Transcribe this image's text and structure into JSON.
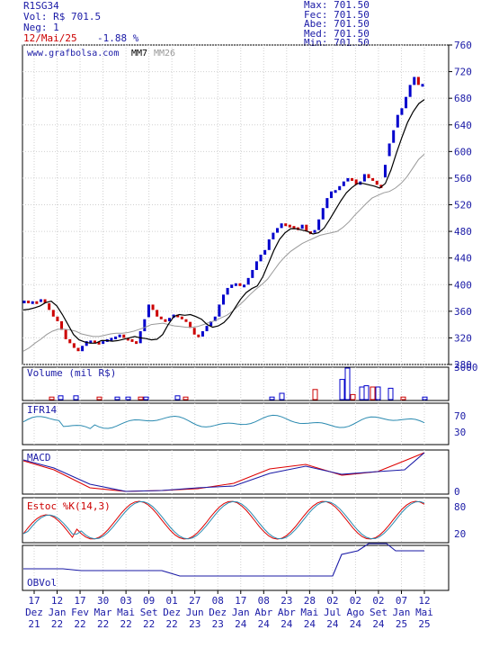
{
  "header": {
    "ticker": "R1SG34",
    "vol": "Vol: R$ 701.5",
    "neg": "Neg: 1",
    "date": "12/Mai/25",
    "change": "-1.88 %"
  },
  "stats": [
    {
      "label": "Max:",
      "value": "701.50"
    },
    {
      "label": "Fec:",
      "value": "701.50"
    },
    {
      "label": "Abe:",
      "value": "701.50"
    },
    {
      "label": "Med:",
      "value": "701.50"
    },
    {
      "label": "Min:",
      "value": "701.50"
    }
  ],
  "colors": {
    "frame": "#000000",
    "text_blue": "#1a1aa6",
    "text_red": "#cc0000",
    "mm7": "#000000",
    "mm26": "#999999",
    "up": "#0000cc",
    "down": "#cc0000",
    "ifr": "#2a8ab0",
    "macd": "#1a1aa6",
    "signal": "#dd0000",
    "stoch_k": "#dd0000",
    "stoch_d": "#2a8ab0",
    "obv": "#1a1aa6",
    "grid": "#d0d0d0"
  },
  "chart_data": {
    "type": "candlestick",
    "watermark": "www.grafbolsa.com",
    "legend": [
      "MM7",
      "MM26"
    ],
    "price_axis": {
      "ylim": [
        280,
        760
      ],
      "ticks": [
        280,
        320,
        360,
        400,
        440,
        480,
        520,
        560,
        600,
        640,
        680,
        720,
        760
      ]
    },
    "x_ticks": [
      {
        "day": "17",
        "month": "Dez",
        "year": "21"
      },
      {
        "day": "12",
        "month": "Jan",
        "year": "22"
      },
      {
        "day": "17",
        "month": "Fev",
        "year": "22"
      },
      {
        "day": "30",
        "month": "Mar",
        "year": "22"
      },
      {
        "day": "03",
        "month": "Mai",
        "year": "22"
      },
      {
        "day": "09",
        "month": "Set",
        "year": "22"
      },
      {
        "day": "01",
        "month": "Dez",
        "year": "22"
      },
      {
        "day": "27",
        "month": "Jun",
        "year": "23"
      },
      {
        "day": "08",
        "month": "Dez",
        "year": "23"
      },
      {
        "day": "17",
        "month": "Jan",
        "year": "24"
      },
      {
        "day": "08",
        "month": "Abr",
        "year": "24"
      },
      {
        "day": "23",
        "month": "Abr",
        "year": "24"
      },
      {
        "day": "28",
        "month": "Mai",
        "year": "24"
      },
      {
        "day": "02",
        "month": "Jul",
        "year": "24"
      },
      {
        "day": "02",
        "month": "Ago",
        "year": "24"
      },
      {
        "day": "02",
        "month": "Set",
        "year": "24"
      },
      {
        "day": "07",
        "month": "Jan",
        "year": "25"
      },
      {
        "day": "12",
        "month": "Mai",
        "year": "25"
      }
    ],
    "close": [
      376,
      372,
      375,
      374,
      378,
      372,
      362,
      352,
      345,
      332,
      318,
      312,
      305,
      300,
      308,
      315,
      316,
      314,
      312,
      315,
      318,
      320,
      322,
      325,
      320,
      318,
      315,
      312,
      330,
      348,
      370,
      362,
      352,
      348,
      345,
      350,
      355,
      352,
      348,
      344,
      335,
      325,
      322,
      330,
      338,
      345,
      352,
      370,
      385,
      395,
      400,
      402,
      398,
      400,
      410,
      422,
      435,
      445,
      452,
      468,
      478,
      485,
      492,
      490,
      488,
      486,
      484,
      490,
      480,
      478,
      482,
      498,
      515,
      530,
      540,
      542,
      548,
      555,
      560,
      558,
      550,
      555,
      566,
      560,
      556,
      550,
      545,
      580,
      612,
      632,
      655,
      665,
      682,
      700,
      712,
      700,
      701.5
    ],
    "mm7": [
      362,
      363,
      365,
      368,
      373,
      375,
      368,
      355,
      340,
      325,
      317,
      314,
      312,
      312,
      316,
      316,
      315,
      316,
      318,
      320,
      322,
      320,
      319,
      317,
      318,
      325,
      340,
      352,
      355,
      354,
      355,
      352,
      348,
      340,
      336,
      338,
      343,
      352,
      365,
      378,
      388,
      394,
      398,
      412,
      432,
      452,
      468,
      478,
      484,
      484,
      482,
      480,
      476,
      478,
      485,
      498,
      512,
      526,
      538,
      546,
      552,
      552,
      550,
      548,
      545,
      552,
      572,
      598,
      622,
      644,
      660,
      672,
      678
    ],
    "mm26": [
      300,
      305,
      312,
      318,
      325,
      330,
      333,
      333,
      332,
      330,
      326,
      324,
      322,
      322,
      324,
      326,
      327,
      327,
      328,
      330,
      333,
      336,
      340,
      341,
      342,
      340,
      338,
      337,
      336,
      336,
      337,
      340,
      343,
      346,
      350,
      354,
      360,
      368,
      376,
      385,
      393,
      400,
      408,
      420,
      432,
      442,
      450,
      456,
      462,
      466,
      470,
      474,
      476,
      478,
      480,
      486,
      494,
      504,
      513,
      522,
      530,
      534,
      538,
      540,
      545,
      552,
      562,
      575,
      588,
      596
    ],
    "volume": {
      "label": "Volume (mil R$)",
      "ylim": [
        0,
        3000
      ],
      "ticks": [
        3000
      ]
    },
    "ifr": {
      "label": "IFR14",
      "ticks": [
        70,
        30
      ]
    },
    "macd": {
      "label": "MACD",
      "ticks": [
        0
      ]
    },
    "stoch": {
      "label": "Estoc %K(14,3)",
      "ticks": [
        80,
        20
      ]
    },
    "obv": {
      "label": "OBVol"
    }
  }
}
